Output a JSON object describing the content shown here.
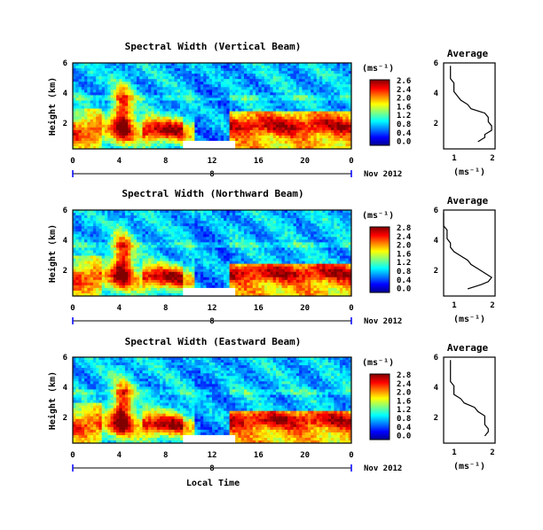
{
  "chart_data": [
    {
      "type": "heatmap",
      "title": "Spectral Width (Vertical Beam)",
      "ylabel": "Height (km)",
      "ylim": [
        0,
        6
      ],
      "y_ticks": [
        "6",
        "4",
        "2"
      ],
      "x_ticks": [
        "0",
        "4",
        "8",
        "12",
        "16",
        "20",
        "0"
      ],
      "date_label": "8",
      "date_suffix": "Nov 2012",
      "colorbar": {
        "unit": "(ms⁻¹)",
        "ticks": [
          "2.6",
          "2.4",
          "2.0",
          "1.6",
          "1.2",
          "0.8",
          "0.4",
          "0.0"
        ],
        "range": [
          0.0,
          2.8
        ]
      },
      "average": {
        "title": "Average",
        "xlabel": "(ms⁻¹)",
        "x_ticks": [
          "1",
          "2"
        ],
        "y_ticks": [
          "6",
          "4",
          "2"
        ],
        "profile_height": [
          0.5,
          0.8,
          1.0,
          1.3,
          1.6,
          1.9,
          2.2,
          2.5,
          2.8,
          3.1,
          3.4,
          3.7,
          4.0,
          4.3,
          4.6,
          4.9,
          5.2,
          5.5,
          5.8
        ],
        "profile_value": [
          1.7,
          1.9,
          1.9,
          2.1,
          2.1,
          2.0,
          2.0,
          1.9,
          1.5,
          1.4,
          1.2,
          1.1,
          1.0,
          1.0,
          1.0,
          0.9,
          0.9,
          0.9,
          0.9
        ]
      }
    },
    {
      "type": "heatmap",
      "title": "Spectral Width (Northward Beam)",
      "ylabel": "Height (km)",
      "ylim": [
        0,
        6
      ],
      "y_ticks": [
        "6",
        "4",
        "2"
      ],
      "x_ticks": [
        "0",
        "4",
        "8",
        "12",
        "16",
        "20",
        "0"
      ],
      "date_label": "8",
      "date_suffix": "Nov 2012",
      "colorbar": {
        "unit": "(ms⁻¹)",
        "ticks": [
          "2.8",
          "2.4",
          "2.0",
          "1.6",
          "1.2",
          "0.8",
          "0.4",
          "0.0"
        ],
        "range": [
          0.0,
          2.8
        ]
      },
      "average": {
        "title": "Average",
        "xlabel": "(ms⁻¹)",
        "x_ticks": [
          "1",
          "2"
        ],
        "y_ticks": [
          "6",
          "4",
          "2"
        ],
        "profile_height": [
          0.5,
          0.8,
          1.0,
          1.3,
          1.6,
          1.9,
          2.2,
          2.5,
          2.8,
          3.1,
          3.4,
          3.7,
          4.0,
          4.3,
          4.6,
          4.9,
          5.2,
          5.5,
          5.8
        ],
        "profile_value": [
          1.4,
          1.8,
          2.0,
          2.1,
          1.9,
          1.7,
          1.5,
          1.4,
          1.2,
          1.0,
          0.9,
          0.9,
          0.8,
          0.8,
          0.8,
          0.7,
          0.7,
          0.7,
          0.7
        ]
      }
    },
    {
      "type": "heatmap",
      "title": "Spectral Width (Eastward Beam)",
      "ylabel": "Height (km)",
      "ylim": [
        0,
        6
      ],
      "y_ticks": [
        "6",
        "4",
        "2"
      ],
      "x_ticks": [
        "0",
        "4",
        "8",
        "12",
        "16",
        "20",
        "0"
      ],
      "date_label": "8",
      "date_suffix": "Nov 2012",
      "xlabel": "Local Time",
      "colorbar": {
        "unit": "(ms⁻¹)",
        "ticks": [
          "2.8",
          "2.4",
          "2.0",
          "1.6",
          "1.2",
          "0.8",
          "0.4",
          "0.0"
        ],
        "range": [
          0.0,
          2.8
        ]
      },
      "average": {
        "title": "Average",
        "xlabel": "(ms⁻¹)",
        "x_ticks": [
          "1",
          "2"
        ],
        "y_ticks": [
          "6",
          "4",
          "2"
        ],
        "profile_height": [
          0.5,
          0.8,
          1.0,
          1.3,
          1.6,
          1.9,
          2.2,
          2.5,
          2.8,
          3.1,
          3.4,
          3.7,
          4.0,
          4.3,
          4.6,
          4.9,
          5.2,
          5.5,
          5.8
        ],
        "profile_value": [
          1.9,
          2.0,
          2.0,
          1.9,
          1.9,
          1.9,
          1.7,
          1.6,
          1.3,
          1.2,
          1.0,
          1.0,
          1.0,
          0.9,
          0.9,
          0.9,
          0.9,
          0.9,
          0.9
        ]
      }
    }
  ]
}
